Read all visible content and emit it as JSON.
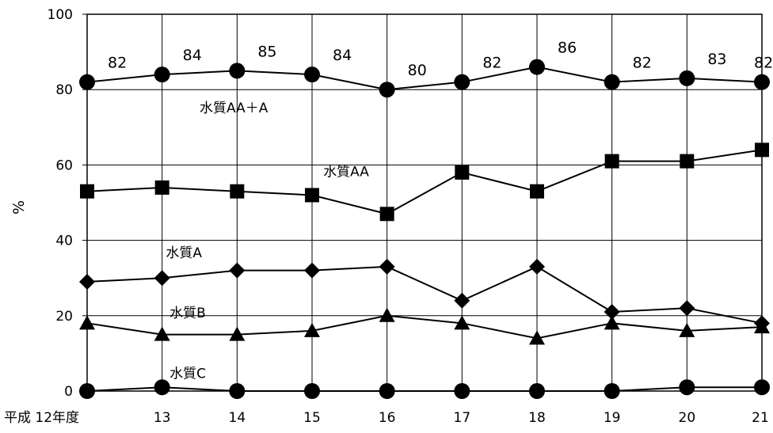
{
  "chart_data": {
    "type": "line",
    "ylabel": "%",
    "ylim": [
      0,
      100
    ],
    "yticks": [
      "0",
      "20",
      "40",
      "60",
      "80",
      "100"
    ],
    "categories": [
      "平成 12年度",
      "13",
      "14",
      "15",
      "16",
      "17",
      "18",
      "19",
      "20",
      "21"
    ],
    "grid": "horizontal and vertical",
    "series": [
      {
        "name": "水質AA＋A",
        "marker": "circle",
        "values": [
          82,
          84,
          85,
          84,
          80,
          82,
          86,
          82,
          83,
          82
        ]
      },
      {
        "name": "水質AA",
        "marker": "square",
        "values": [
          53,
          54,
          53,
          52,
          47,
          58,
          53,
          61,
          61,
          64
        ]
      },
      {
        "name": "水質A",
        "marker": "diamond",
        "values": [
          29,
          30,
          32,
          32,
          33,
          24,
          33,
          21,
          22,
          18
        ]
      },
      {
        "name": "水質B",
        "marker": "triangle",
        "values": [
          18,
          15,
          15,
          16,
          20,
          18,
          14,
          18,
          16,
          17
        ]
      },
      {
        "name": "水質C",
        "marker": "circle",
        "values": [
          0,
          1,
          0,
          0,
          0,
          0,
          0,
          0,
          1,
          1
        ]
      }
    ],
    "data_labels": [
      "82",
      "84",
      "85",
      "84",
      "80",
      "82",
      "86",
      "82",
      "83",
      "82"
    ]
  }
}
